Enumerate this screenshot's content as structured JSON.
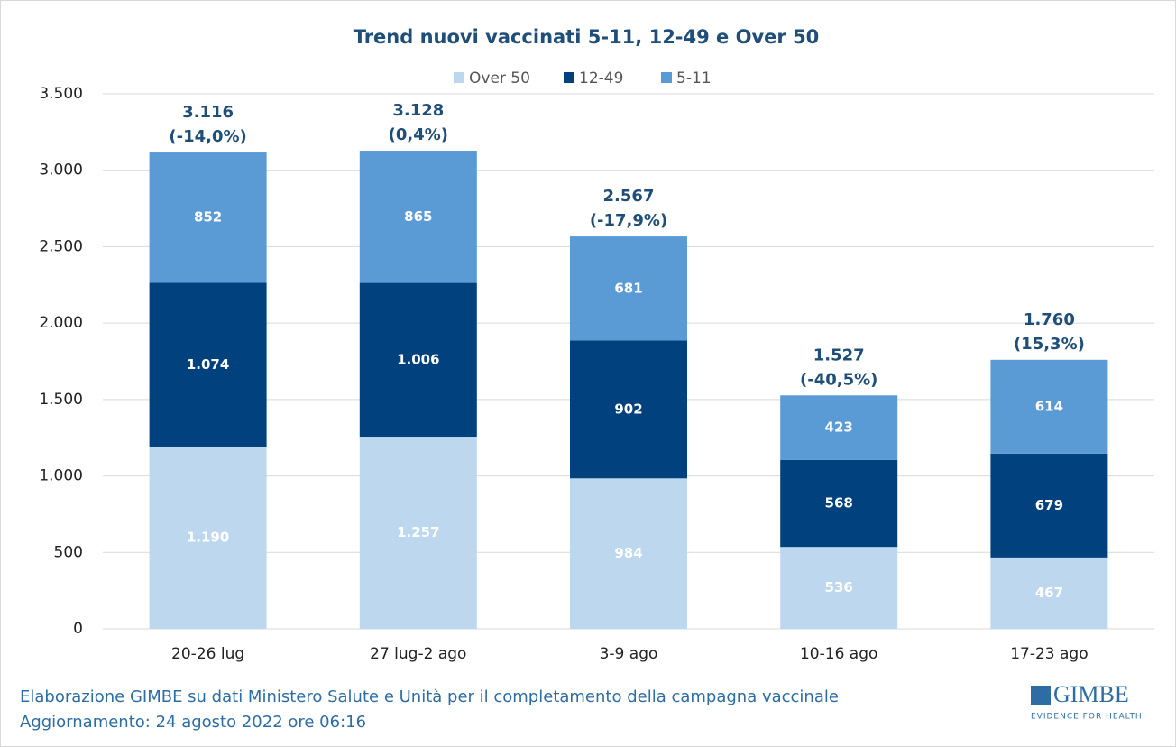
{
  "chart_data": {
    "type": "stacked_bar",
    "title": "Trend nuovi vaccinati 5-11, 12-49 e Over 50",
    "categories": [
      "20-26 lug",
      "27 lug-2 ago",
      "3-9 ago",
      "10-16 ago",
      "17-23 ago"
    ],
    "series": [
      {
        "name": "Over 50",
        "color": "#bdd7ee",
        "values": [
          1190,
          1257,
          984,
          536,
          467
        ],
        "value_labels": [
          "1.190",
          "1.257",
          "984",
          "536",
          "467"
        ]
      },
      {
        "name": "12-49",
        "color": "#01417e",
        "values": [
          1074,
          1006,
          902,
          568,
          679
        ],
        "value_labels": [
          "1.074",
          "1.006",
          "902",
          "568",
          "679"
        ]
      },
      {
        "name": "5-11",
        "color": "#5b9bd5",
        "values": [
          852,
          865,
          681,
          423,
          614
        ],
        "value_labels": [
          "852",
          "865",
          "681",
          "423",
          "614"
        ]
      }
    ],
    "totals": {
      "values": [
        3116,
        3128,
        2567,
        1527,
        1760
      ],
      "value_labels": [
        "3.116",
        "3.128",
        "2.567",
        "1.527",
        "1.760"
      ]
    },
    "change_labels": [
      "(-14,0%)",
      "(0,4%)",
      "(-17,9%)",
      "(-40,5%)",
      "(15,3%)"
    ],
    "ylim": [
      0,
      3500
    ],
    "yticks": [
      0,
      500,
      {
        "value": 1000,
        "label": "1.000"
      },
      {
        "value": 1500,
        "label": "1.500"
      },
      {
        "value": 2000,
        "label": "2.000"
      },
      {
        "value": 2500,
        "label": "2.500"
      },
      {
        "value": 3000,
        "label": "3.000"
      },
      {
        "value": 3500,
        "label": "3.500"
      }
    ],
    "grid": true
  },
  "footer": {
    "source": "Elaborazione GIMBE su dati Ministero Salute e Unità per il completamento della campagna vaccinale",
    "updated": "Aggiornamento: 24 agosto 2022 ore 06:16"
  },
  "logo": {
    "name": "GIMBE",
    "tagline": "EVIDENCE FOR HEALTH"
  }
}
